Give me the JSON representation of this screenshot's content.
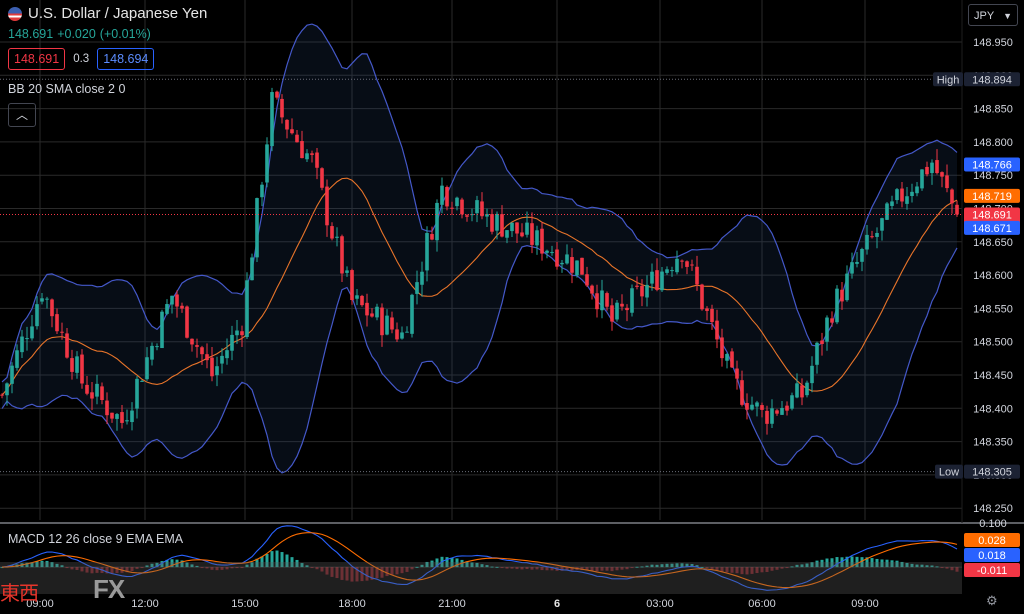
{
  "header": {
    "symbol": "U.S. Dollar / Japanese Yen",
    "last": "148.691",
    "change": "+0.020",
    "change_pct": "(+0.01%)",
    "sell": "148.691",
    "spread": "0.3",
    "buy": "148.694",
    "bb_label": "BB 20 SMA close 2 0",
    "macd_label": "MACD 12 26 close 9 EMA EMA",
    "collapse_icon": "chevron-up-icon",
    "currency": "JPY"
  },
  "watermark": {
    "kanji": "東西",
    "fx": "FX"
  },
  "colors": {
    "up": "#26a69a",
    "down": "#f23645",
    "band": "#4458c9",
    "basis": "#e8742a",
    "grid": "#2a2a2a",
    "blue_tag": "#2962ff",
    "orange_tag": "#ff6d00",
    "red_tag": "#f23645"
  },
  "chart_data": {
    "type": "candlestick",
    "price_axis": {
      "min": 148.25,
      "max": 148.95,
      "ticks": [
        "148.250",
        "148.300",
        "148.350",
        "148.400",
        "148.450",
        "148.500",
        "148.550",
        "148.600",
        "148.650",
        "148.700",
        "148.750",
        "148.800",
        "148.850",
        "148.900",
        "148.950"
      ],
      "high_label": "High",
      "high_value": "148.894",
      "low_label": "Low",
      "low_value": "148.305"
    },
    "price_tags": [
      {
        "value": 148.766,
        "label": "148.766",
        "color": "#2962ff"
      },
      {
        "value": 148.719,
        "label": "148.719",
        "color": "#ff6d00"
      },
      {
        "value": 148.691,
        "label": "148.691",
        "color": "#f23645",
        "sub": "04:20"
      },
      {
        "value": 148.671,
        "label": "148.671",
        "color": "#2962ff"
      }
    ],
    "time_axis": [
      "09:00",
      "12:00",
      "15:00",
      "18:00",
      "21:00",
      "6",
      "03:00",
      "06:00",
      "09:00"
    ],
    "anchors": [
      [
        0,
        148.42
      ],
      [
        8,
        148.58
      ],
      [
        16,
        148.44
      ],
      [
        24,
        148.38
      ],
      [
        34,
        148.57
      ],
      [
        42,
        148.45
      ],
      [
        48,
        148.53
      ],
      [
        54,
        148.86
      ],
      [
        62,
        148.77
      ],
      [
        70,
        148.56
      ],
      [
        80,
        148.51
      ],
      [
        88,
        148.73
      ],
      [
        96,
        148.69
      ],
      [
        110,
        148.64
      ],
      [
        116,
        148.61
      ],
      [
        122,
        148.53
      ],
      [
        130,
        148.59
      ],
      [
        136,
        148.64
      ],
      [
        146,
        148.44
      ],
      [
        152,
        148.39
      ],
      [
        160,
        148.42
      ],
      [
        166,
        148.55
      ],
      [
        172,
        148.63
      ],
      [
        180,
        148.72
      ],
      [
        186,
        148.77
      ],
      [
        191,
        148.691
      ]
    ],
    "macd": {
      "min": -0.03,
      "max": 0.1,
      "ticks": [
        "0.100"
      ],
      "tags": [
        {
          "label": "0.028",
          "value": 0.028,
          "color": "#ff6d00"
        },
        {
          "label": "0.018",
          "value": 0.018,
          "color": "#2962ff"
        },
        {
          "label": "-0.011",
          "value": -0.011,
          "color": "#f23645"
        }
      ]
    }
  }
}
